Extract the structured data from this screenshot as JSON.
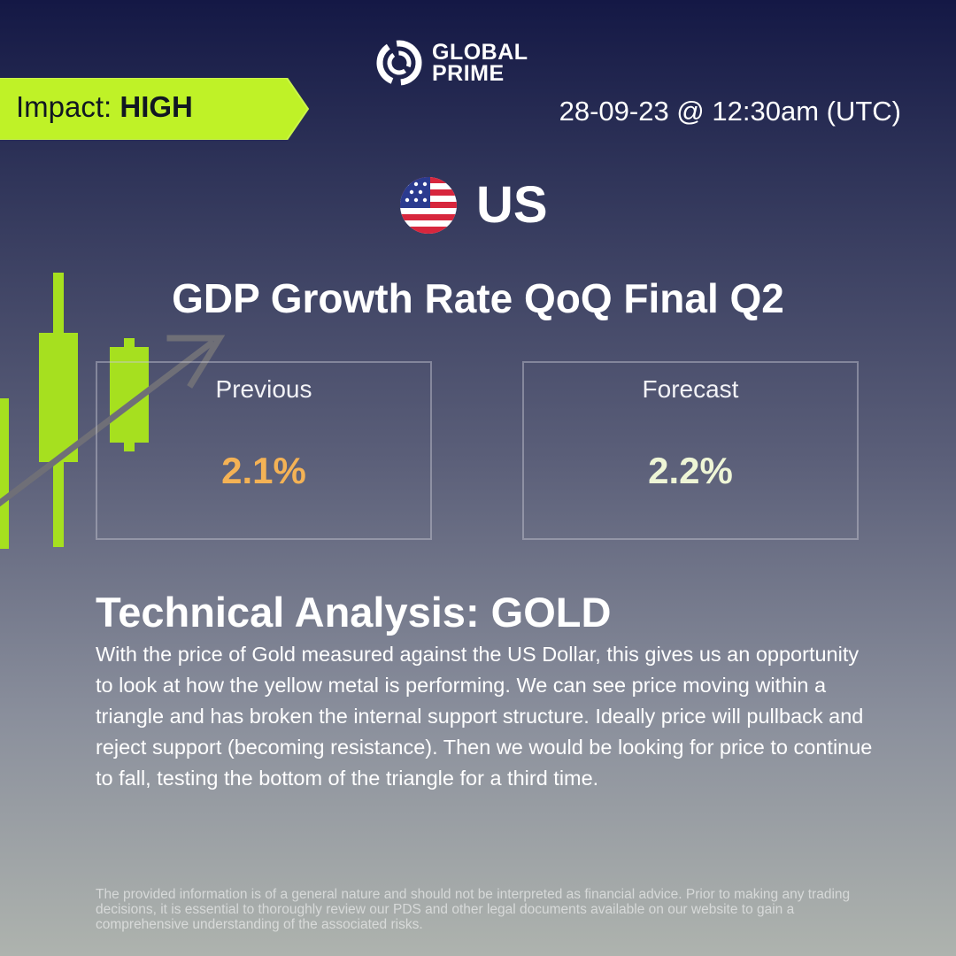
{
  "brand": {
    "line1": "GLOBAL",
    "line2": "PRIME",
    "icon": "global-prime-logo-icon"
  },
  "impact": {
    "label": "Impact: ",
    "level": "HIGH",
    "color": "#bff227"
  },
  "datetime": "28-09-23 @ 12:30am (UTC)",
  "country": {
    "name": "US",
    "icon": "us-flag-icon"
  },
  "indicator": {
    "title": "GDP Growth Rate QoQ Final Q2"
  },
  "stats": {
    "previous": {
      "label": "Previous",
      "value": "2.1%",
      "color": "#f4b255"
    },
    "forecast": {
      "label": "Forecast",
      "value": "2.2%",
      "color": "#eef5d6"
    }
  },
  "analysis": {
    "title": "Technical Analysis: GOLD",
    "body": "With the price of Gold measured against the US Dollar, this gives us an opportunity to look at how the yellow metal is performing. We can see price moving within a triangle and has broken the internal support structure. Ideally price will pullback and reject support (becoming resistance). Then we would be looking for price to continue to fall, testing the bottom of the triangle for a third time."
  },
  "disclaimer": "The provided information is of a general nature and should not be interpreted as financial advice. Prior to making any trading decisions, it is essential to thoroughly review our PDS and other legal documents available on our website to gain a comprehensive understanding of the associated risks.",
  "decoration": {
    "icon": "candlestick-chart-icon",
    "accent": "#a6e01f"
  }
}
